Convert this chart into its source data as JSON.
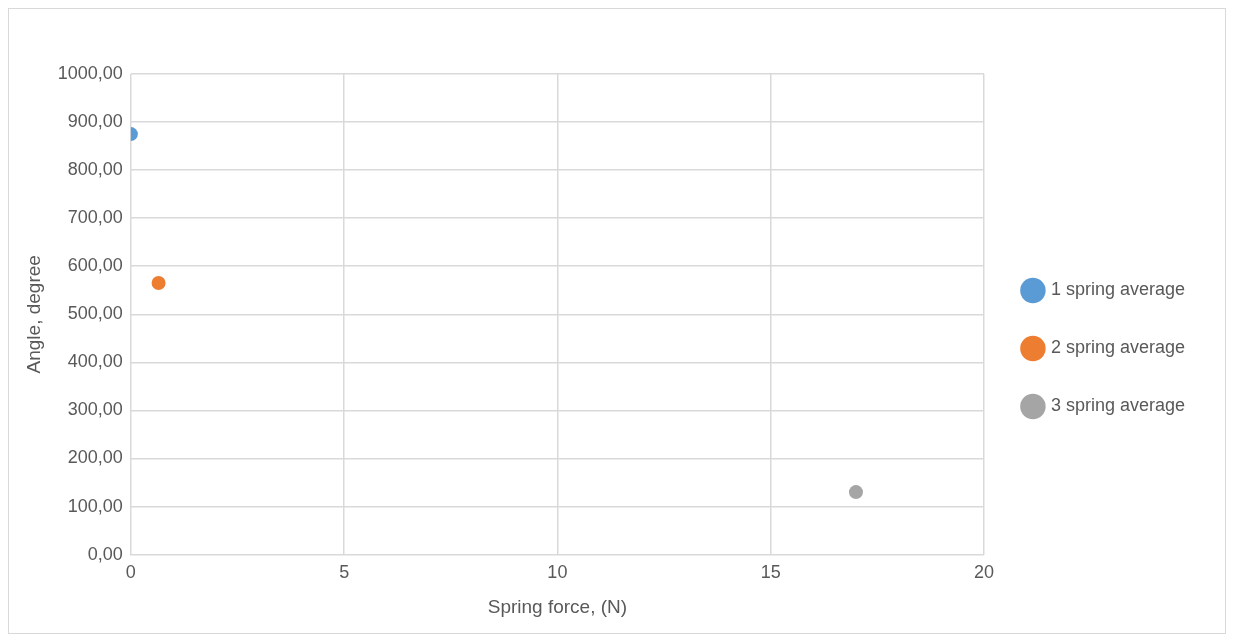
{
  "chart_data": {
    "type": "scatter",
    "xlabel": "Spring force, (N)",
    "ylabel": "Angle, degree",
    "series": [
      {
        "name": "1 spring average",
        "color": "#5b9bd5",
        "x": [
          0
        ],
        "values": [
          875
        ]
      },
      {
        "name": "2 spring average",
        "color": "#ed7d31",
        "x": [
          0.65
        ],
        "values": [
          565
        ]
      },
      {
        "name": "3 spring average",
        "color": "#a5a5a5",
        "x": [
          17
        ],
        "values": [
          130
        ]
      }
    ],
    "xlim": [
      0,
      20
    ],
    "xticks": [
      0,
      5,
      10,
      15,
      20
    ],
    "ylim": [
      0,
      1000
    ],
    "yticks": [
      {
        "value": 0,
        "label": "0,00"
      },
      {
        "value": 100,
        "label": "100,00"
      },
      {
        "value": 200,
        "label": "200,00"
      },
      {
        "value": 300,
        "label": "300,00"
      },
      {
        "value": 400,
        "label": "400,00"
      },
      {
        "value": 500,
        "label": "500,00"
      },
      {
        "value": 600,
        "label": "600,00"
      },
      {
        "value": 700,
        "label": "700,00"
      },
      {
        "value": 800,
        "label": "800,00"
      },
      {
        "value": 900,
        "label": "900,00"
      },
      {
        "value": 1000,
        "label": "1000,00"
      }
    ],
    "grid": true,
    "legend": "right",
    "marker": "circle"
  }
}
